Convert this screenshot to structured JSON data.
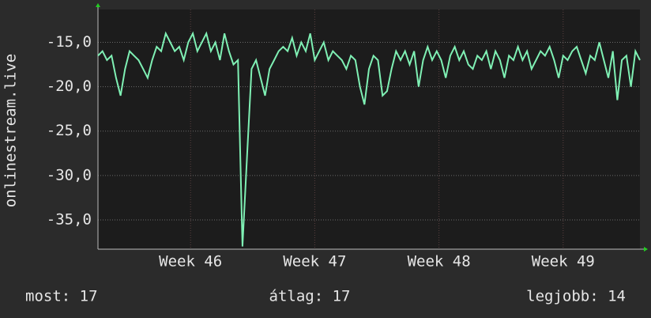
{
  "chart_data": {
    "type": "line",
    "y_label": "onlinestream.live",
    "xlim": [
      0,
      120
    ],
    "xticks": [
      {
        "value": 20.5,
        "label": "Week 46"
      },
      {
        "value": 48,
        "label": "Week 47"
      },
      {
        "value": 75.5,
        "label": "Week 48"
      },
      {
        "value": 103,
        "label": "Week 49"
      }
    ],
    "ylim": [
      -38.3,
      -11.3
    ],
    "yticks": [
      {
        "value": -15,
        "label": "-15,0"
      },
      {
        "value": -20,
        "label": "-20,0"
      },
      {
        "value": -25,
        "label": "-25,0"
      },
      {
        "value": -30,
        "label": "-30,0"
      },
      {
        "value": -35,
        "label": "-35,0"
      }
    ],
    "grid": true,
    "series": [
      {
        "color": "#7ff0b4",
        "values": [
          -16.5,
          -16,
          -17,
          -16.5,
          -19,
          -21,
          -18,
          -16,
          -16.5,
          -17,
          -18,
          -19,
          -17,
          -15.5,
          -16,
          -14,
          -15,
          -16,
          -15.5,
          -17,
          -15,
          -14,
          -16,
          -15,
          -14,
          -16,
          -15,
          -17,
          -14,
          -16,
          -17.5,
          -17,
          -38,
          -28,
          -18,
          -17,
          -19,
          -21,
          -18,
          -17,
          -16,
          -15.5,
          -16,
          -14.5,
          -16.5,
          -15,
          -16,
          -14,
          -17,
          -16,
          -15,
          -17,
          -16,
          -16.5,
          -17,
          -18,
          -16.5,
          -17,
          -20,
          -22,
          -18,
          -16.5,
          -17,
          -21,
          -20.5,
          -18,
          -16,
          -17,
          -16,
          -17.5,
          -16,
          -20,
          -17,
          -15.5,
          -17,
          -16,
          -17,
          -19,
          -16.5,
          -15.5,
          -17,
          -16,
          -17.5,
          -18,
          -16.5,
          -17,
          -16,
          -18,
          -16,
          -17,
          -19,
          -16.5,
          -17,
          -15.5,
          -17,
          -16,
          -18,
          -17,
          -16,
          -16.5,
          -15.5,
          -17,
          -19,
          -16.5,
          -17,
          -16,
          -15.5,
          -17,
          -18.5,
          -16.5,
          -17,
          -15,
          -17,
          -19,
          -16,
          -21.5,
          -17,
          -16.5,
          -20,
          -16,
          -17
        ]
      }
    ],
    "footer": {
      "current": "most: 17",
      "average": "átlag: 17",
      "best": "legjobb: 14"
    }
  }
}
